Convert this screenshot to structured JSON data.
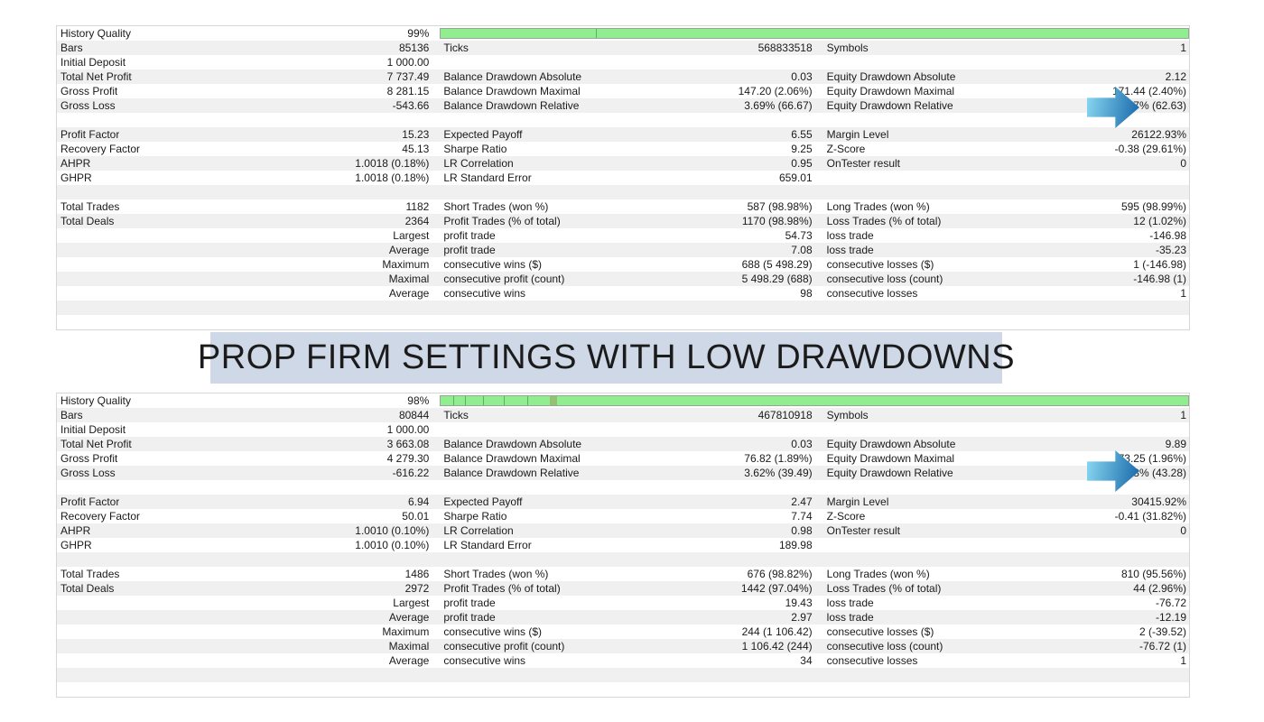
{
  "banner": {
    "text": "PROP FIRM SETTINGS WITH LOW DRAWDOWNS",
    "bg": "#cfd8e6"
  },
  "colors": {
    "row_alt": "#f0f0f0",
    "bar_fill": "#90ee90",
    "bar_border": "#94a894",
    "arrow_from": "#8ad9f2",
    "arrow_to": "#1565a8",
    "table_border": "#d6d6d6"
  },
  "reports": [
    {
      "id": "top",
      "rows": [
        {
          "type": "quality",
          "label": "History Quality",
          "value": "99%",
          "segmented": false,
          "dividers": [
            20.8
          ]
        },
        {
          "type": "data",
          "cells": [
            "Bars",
            "85136",
            "Ticks",
            "568833518",
            "Symbols",
            "1"
          ]
        },
        {
          "type": "data",
          "cells": [
            "Initial Deposit",
            "1 000.00",
            "",
            "",
            "",
            ""
          ]
        },
        {
          "type": "data",
          "cells": [
            "Total Net Profit",
            "7 737.49",
            "Balance Drawdown Absolute",
            "0.03",
            "Equity Drawdown Absolute",
            "2.12"
          ]
        },
        {
          "type": "data",
          "cells": [
            "Gross Profit",
            "8 281.15",
            "Balance Drawdown Maximal",
            "147.20 (2.06%)",
            "Equity Drawdown Maximal",
            "171.44 (2.40%)"
          ]
        },
        {
          "type": "data",
          "cells": [
            "Gross Loss",
            "-543.66",
            "Balance Drawdown Relative",
            "3.69% (66.67)",
            "Equity Drawdown Relative",
            "3.47% (62.63)"
          ]
        },
        {
          "type": "empty"
        },
        {
          "type": "data",
          "cells": [
            "Profit Factor",
            "15.23",
            "Expected Payoff",
            "6.55",
            "Margin Level",
            "26122.93%"
          ]
        },
        {
          "type": "data",
          "cells": [
            "Recovery Factor",
            "45.13",
            "Sharpe Ratio",
            "9.25",
            "Z-Score",
            "-0.38 (29.61%)"
          ]
        },
        {
          "type": "data",
          "cells": [
            "AHPR",
            "1.0018 (0.18%)",
            "LR Correlation",
            "0.95",
            "OnTester result",
            "0"
          ]
        },
        {
          "type": "data",
          "cells": [
            "GHPR",
            "1.0018 (0.18%)",
            "LR Standard Error",
            "659.01",
            "",
            ""
          ]
        },
        {
          "type": "empty"
        },
        {
          "type": "data",
          "cells": [
            "Total Trades",
            "1182",
            "Short Trades (won %)",
            "587 (98.98%)",
            "Long Trades (won %)",
            "595 (98.99%)"
          ]
        },
        {
          "type": "data",
          "cells": [
            "Total Deals",
            "2364",
            "Profit Trades (% of total)",
            "1170 (98.98%)",
            "Loss Trades (% of total)",
            "12 (1.02%)"
          ]
        },
        {
          "type": "data",
          "cells": [
            "",
            "Largest",
            "profit trade",
            "54.73",
            "loss trade",
            "-146.98"
          ]
        },
        {
          "type": "data",
          "cells": [
            "",
            "Average",
            "profit trade",
            "7.08",
            "loss trade",
            "-35.23"
          ]
        },
        {
          "type": "data",
          "cells": [
            "",
            "Maximum",
            "consecutive wins ($)",
            "688 (5 498.29)",
            "consecutive losses ($)",
            "1 (-146.98)"
          ]
        },
        {
          "type": "data",
          "cells": [
            "",
            "Maximal",
            "consecutive profit (count)",
            "5 498.29 (688)",
            "consecutive loss (count)",
            "-146.98 (1)"
          ]
        },
        {
          "type": "data",
          "cells": [
            "",
            "Average",
            "consecutive wins",
            "98",
            "consecutive losses",
            "1"
          ]
        },
        {
          "type": "empty"
        },
        {
          "type": "empty"
        }
      ]
    },
    {
      "id": "bottom",
      "rows": [
        {
          "type": "quality",
          "label": "History Quality",
          "value": "98%",
          "segmented": true,
          "dividers": [
            1.6,
            3.2,
            5.6,
            8.4,
            11.5
          ],
          "patch": {
            "left": 14.6,
            "width": 0.9
          }
        },
        {
          "type": "data",
          "cells": [
            "Bars",
            "80844",
            "Ticks",
            "467810918",
            "Symbols",
            "1"
          ]
        },
        {
          "type": "data",
          "cells": [
            "Initial Deposit",
            "1 000.00",
            "",
            "",
            "",
            ""
          ]
        },
        {
          "type": "data",
          "cells": [
            "Total Net Profit",
            "3 663.08",
            "Balance Drawdown Absolute",
            "0.03",
            "Equity Drawdown Absolute",
            "9.89"
          ]
        },
        {
          "type": "data",
          "cells": [
            "Gross Profit",
            "4 279.30",
            "Balance Drawdown Maximal",
            "76.82 (1.89%)",
            "Equity Drawdown Maximal",
            "73.25 (1.96%)"
          ]
        },
        {
          "type": "data",
          "cells": [
            "Gross Loss",
            "-616.22",
            "Balance Drawdown Relative",
            "3.62% (39.49)",
            "Equity Drawdown Relative",
            "3.98% (43.28)"
          ]
        },
        {
          "type": "empty"
        },
        {
          "type": "data",
          "cells": [
            "Profit Factor",
            "6.94",
            "Expected Payoff",
            "2.47",
            "Margin Level",
            "30415.92%"
          ]
        },
        {
          "type": "data",
          "cells": [
            "Recovery Factor",
            "50.01",
            "Sharpe Ratio",
            "7.74",
            "Z-Score",
            "-0.41 (31.82%)"
          ]
        },
        {
          "type": "data",
          "cells": [
            "AHPR",
            "1.0010 (0.10%)",
            "LR Correlation",
            "0.98",
            "OnTester result",
            "0"
          ]
        },
        {
          "type": "data",
          "cells": [
            "GHPR",
            "1.0010 (0.10%)",
            "LR Standard Error",
            "189.98",
            "",
            ""
          ]
        },
        {
          "type": "empty"
        },
        {
          "type": "data",
          "cells": [
            "Total Trades",
            "1486",
            "Short Trades (won %)",
            "676 (98.82%)",
            "Long Trades (won %)",
            "810 (95.56%)"
          ]
        },
        {
          "type": "data",
          "cells": [
            "Total Deals",
            "2972",
            "Profit Trades (% of total)",
            "1442 (97.04%)",
            "Loss Trades (% of total)",
            "44 (2.96%)"
          ]
        },
        {
          "type": "data",
          "cells": [
            "",
            "Largest",
            "profit trade",
            "19.43",
            "loss trade",
            "-76.72"
          ]
        },
        {
          "type": "data",
          "cells": [
            "",
            "Average",
            "profit trade",
            "2.97",
            "loss trade",
            "-12.19"
          ]
        },
        {
          "type": "data",
          "cells": [
            "",
            "Maximum",
            "consecutive wins ($)",
            "244 (1 106.42)",
            "consecutive losses ($)",
            "2 (-39.52)"
          ]
        },
        {
          "type": "data",
          "cells": [
            "",
            "Maximal",
            "consecutive profit (count)",
            "1 106.42 (244)",
            "consecutive loss (count)",
            "-76.72 (1)"
          ]
        },
        {
          "type": "data",
          "cells": [
            "",
            "Average",
            "consecutive wins",
            "34",
            "consecutive losses",
            "1"
          ]
        },
        {
          "type": "empty"
        },
        {
          "type": "empty"
        }
      ]
    }
  ]
}
